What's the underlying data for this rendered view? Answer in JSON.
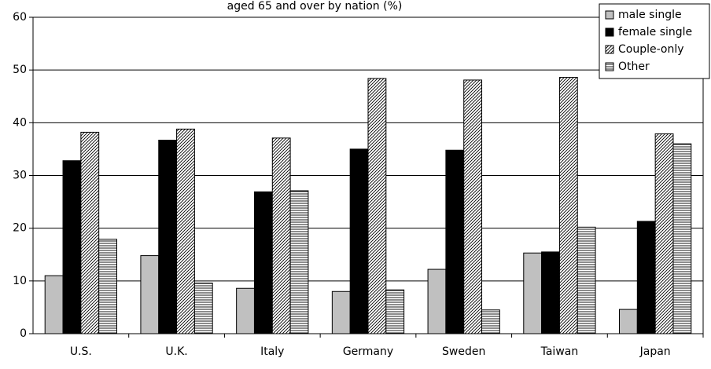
{
  "chart_data": {
    "type": "bar",
    "title": "aged 65 and over by nation (%)",
    "categories": [
      "U.S.",
      "U.K.",
      "Italy",
      "Germany",
      "Sweden",
      "Taiwan",
      "Japan"
    ],
    "series": [
      {
        "name": "male single",
        "color": "#c0c0c0",
        "values": [
          11.0,
          14.8,
          8.6,
          8.0,
          12.2,
          15.3,
          4.6
        ]
      },
      {
        "name": "female single",
        "color": "#000000",
        "values": [
          32.8,
          36.7,
          26.9,
          35.0,
          34.8,
          15.5,
          21.3
        ]
      },
      {
        "name": "Couple-only",
        "color": "#000000",
        "pattern": "diagonal",
        "values": [
          38.2,
          38.8,
          37.1,
          48.4,
          48.1,
          48.6,
          37.9
        ]
      },
      {
        "name": "Other",
        "color": "#000000",
        "pattern": "horizontal",
        "values": [
          17.9,
          9.6,
          27.1,
          8.3,
          4.5,
          20.2,
          36.0
        ]
      }
    ],
    "ylim": [
      0,
      60
    ],
    "yticks": [
      0,
      10,
      20,
      30,
      40,
      50,
      60
    ],
    "grid": true,
    "legend": "top-right"
  }
}
